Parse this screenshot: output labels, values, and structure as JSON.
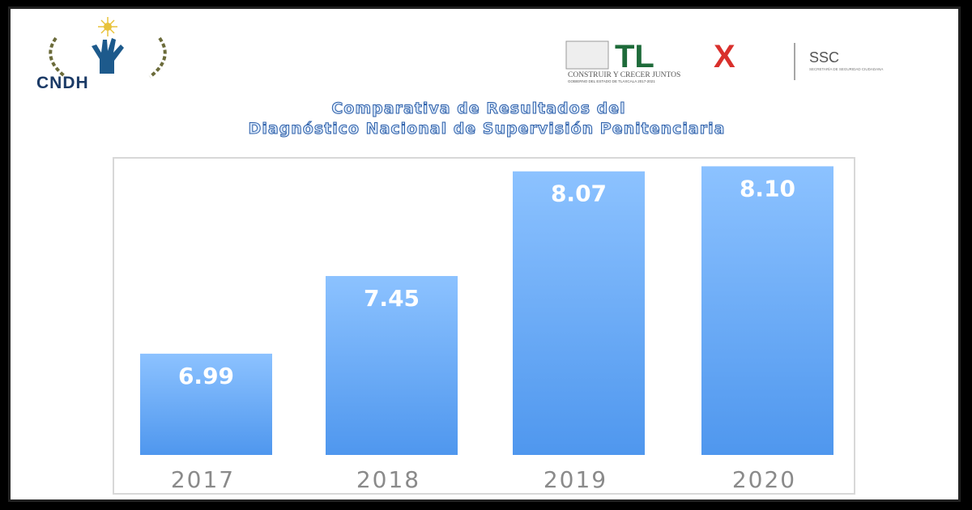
{
  "logos": {
    "left": "CNDH",
    "right_main": "TLX",
    "right_tagline": "CONSTRUIR Y CRECER JUNTOS",
    "right_sub": "GOBIERNO DEL ESTADO DE TLAXCALA 2017-2021",
    "right_ssc": "SSC",
    "right_ssc_sub": "SECRETARÍA DE SEGURIDAD CIUDADANA"
  },
  "colors": {
    "bar_top": "#8cc2ff",
    "bar_bottom": "#4f97ee",
    "title_stroke": "#2a5da8",
    "tlx_green": "#1e6b3a",
    "tlx_red": "#d9302c"
  },
  "chart_data": {
    "type": "bar",
    "title": "Comparativa de Resultados del Diagnóstico Nacional de Supervisión Penitenciaria",
    "title_lines": [
      "Comparativa de Resultados del",
      "Diagnóstico Nacional de Supervisión Penitenciaria"
    ],
    "categories": [
      "2017",
      "2018",
      "2019",
      "2020"
    ],
    "values": [
      6.99,
      7.45,
      8.07,
      8.1
    ],
    "labels": [
      "6.99",
      "7.45",
      "8.07",
      "8.10"
    ],
    "xlabel": "",
    "ylabel": "",
    "ylim": [
      6.39,
      8.15
    ],
    "grid": false,
    "legend": "none"
  }
}
